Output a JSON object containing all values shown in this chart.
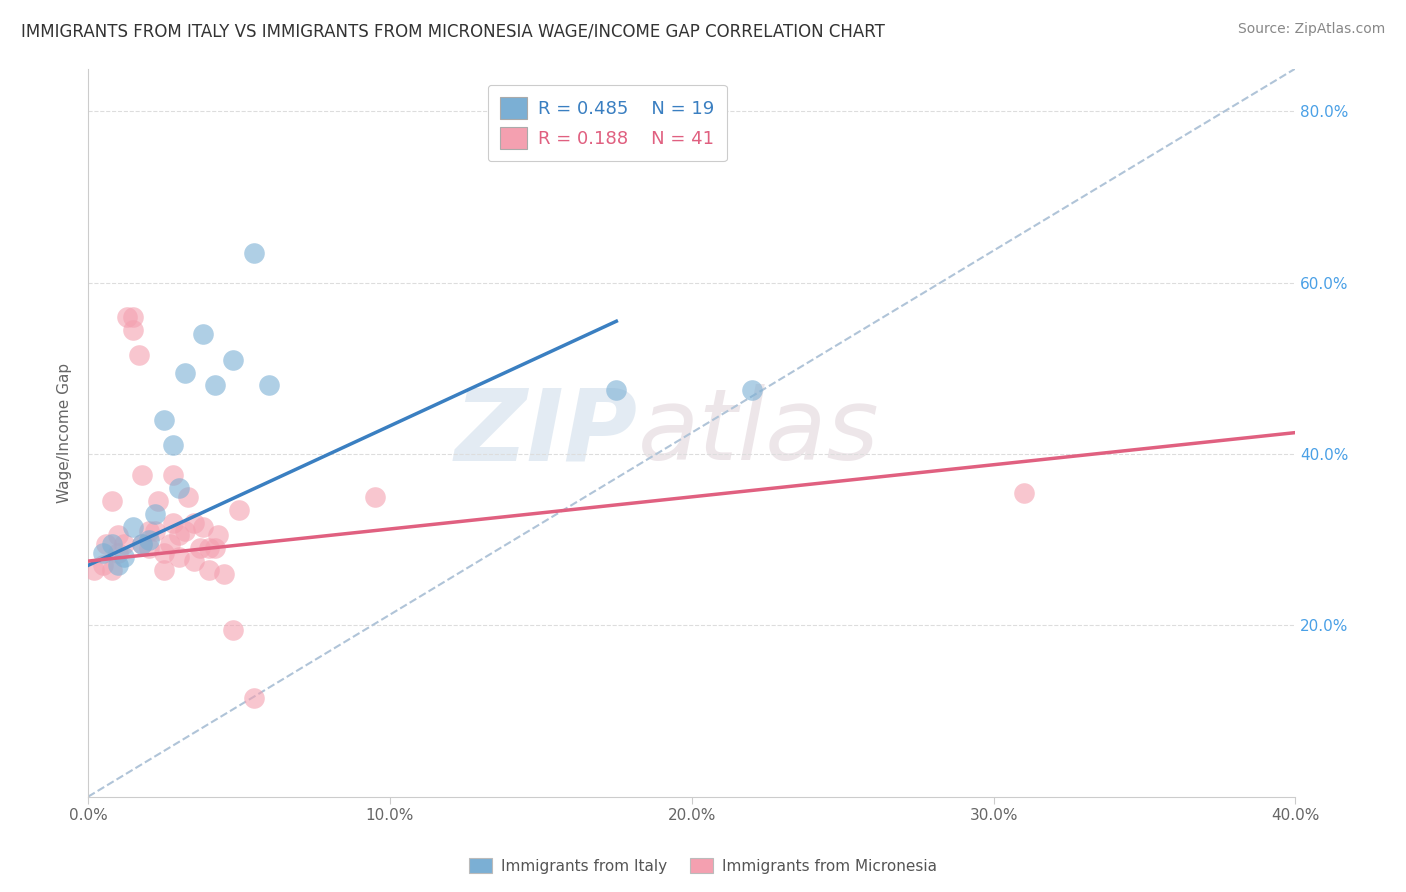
{
  "title": "IMMIGRANTS FROM ITALY VS IMMIGRANTS FROM MICRONESIA WAGE/INCOME GAP CORRELATION CHART",
  "source": "Source: ZipAtlas.com",
  "ylabel": "Wage/Income Gap",
  "xlim": [
    0.0,
    0.4
  ],
  "ylim": [
    0.0,
    0.85
  ],
  "xticks": [
    0.0,
    0.1,
    0.2,
    0.3,
    0.4
  ],
  "yticks_right": [
    0.2,
    0.4,
    0.6,
    0.8
  ],
  "ytick_labels_right": [
    "20.0%",
    "40.0%",
    "60.0%",
    "80.0%"
  ],
  "xtick_labels": [
    "0.0%",
    "10.0%",
    "20.0%",
    "30.0%",
    "40.0%"
  ],
  "italy_color": "#7bafd4",
  "micronesia_color": "#f4a0b0",
  "italy_R": 0.485,
  "italy_N": 19,
  "micronesia_R": 0.188,
  "micronesia_N": 41,
  "italy_line_color": "#3a7fc1",
  "micronesia_line_color": "#e06080",
  "dashed_line_color": "#b0c4d8",
  "watermark_zip": "ZIP",
  "watermark_atlas": "atlas",
  "italy_x": [
    0.005,
    0.008,
    0.01,
    0.012,
    0.015,
    0.018,
    0.02,
    0.022,
    0.025,
    0.028,
    0.03,
    0.032,
    0.038,
    0.042,
    0.048,
    0.055,
    0.06,
    0.175,
    0.22
  ],
  "italy_y": [
    0.285,
    0.295,
    0.27,
    0.28,
    0.315,
    0.295,
    0.3,
    0.33,
    0.44,
    0.41,
    0.36,
    0.495,
    0.54,
    0.48,
    0.51,
    0.635,
    0.48,
    0.475,
    0.475
  ],
  "micronesia_x": [
    0.002,
    0.005,
    0.006,
    0.008,
    0.008,
    0.01,
    0.01,
    0.012,
    0.013,
    0.015,
    0.015,
    0.017,
    0.018,
    0.018,
    0.02,
    0.02,
    0.022,
    0.023,
    0.025,
    0.025,
    0.027,
    0.028,
    0.028,
    0.03,
    0.03,
    0.032,
    0.033,
    0.035,
    0.035,
    0.037,
    0.038,
    0.04,
    0.04,
    0.042,
    0.043,
    0.045,
    0.048,
    0.05,
    0.055,
    0.095,
    0.31
  ],
  "micronesia_y": [
    0.265,
    0.27,
    0.295,
    0.265,
    0.345,
    0.305,
    0.285,
    0.295,
    0.56,
    0.56,
    0.545,
    0.515,
    0.375,
    0.295,
    0.31,
    0.29,
    0.31,
    0.345,
    0.265,
    0.285,
    0.295,
    0.375,
    0.32,
    0.305,
    0.28,
    0.31,
    0.35,
    0.275,
    0.32,
    0.29,
    0.315,
    0.29,
    0.265,
    0.29,
    0.305,
    0.26,
    0.195,
    0.335,
    0.115,
    0.35,
    0.355
  ],
  "italy_line_x": [
    0.0,
    0.175
  ],
  "italy_line_y": [
    0.27,
    0.555
  ],
  "micronesia_line_x": [
    0.0,
    0.4
  ],
  "micronesia_line_y": [
    0.275,
    0.425
  ],
  "dash_line_x": [
    0.0,
    0.4
  ],
  "dash_line_y": [
    0.0,
    0.85
  ]
}
